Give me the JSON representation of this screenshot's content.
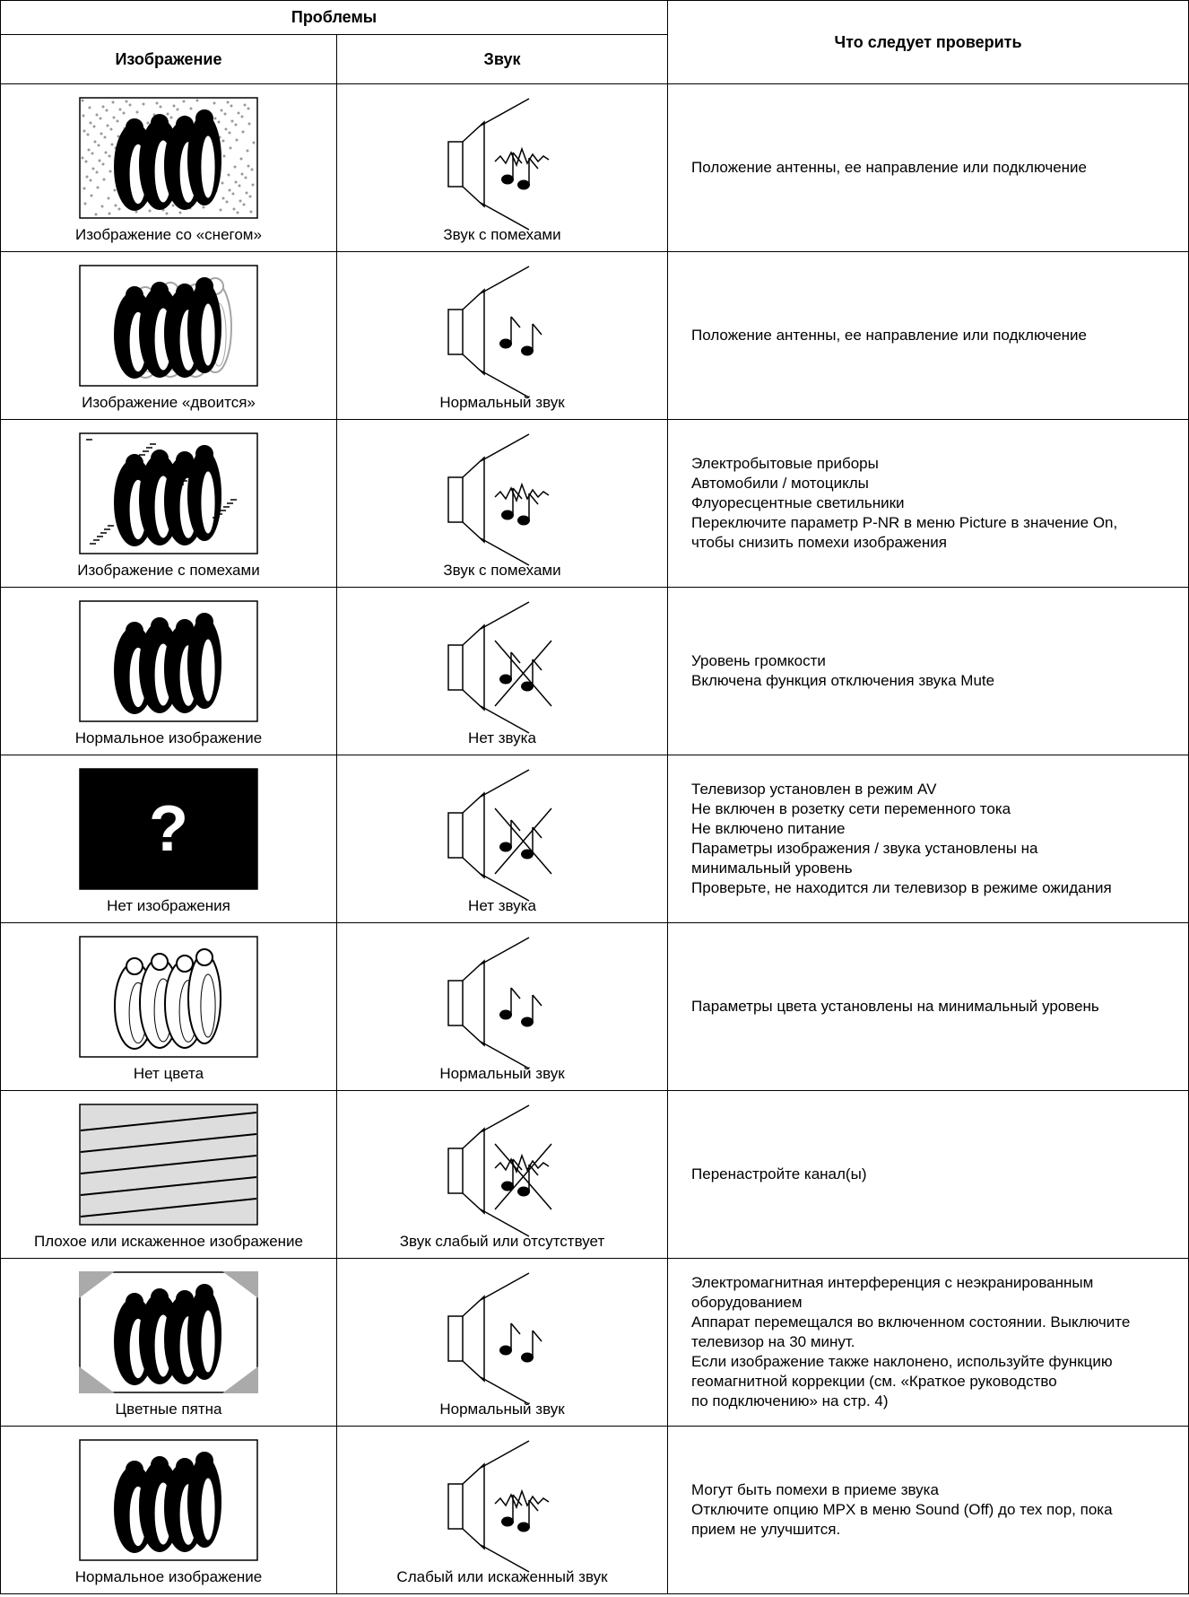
{
  "header": {
    "problems": "Проблемы",
    "image": "Изображение",
    "sound": "Звук",
    "check": "Что следует проверить"
  },
  "rows": [
    {
      "image_caption": "Изображение со «снегом»",
      "sound_caption": "Звук с помехами",
      "check": [
        "Положение антенны, ее направление или подключение"
      ]
    },
    {
      "image_caption": "Изображение «двоится»",
      "sound_caption": "Нормальный звук",
      "check": [
        "Положение антенны, ее направление или подключение"
      ]
    },
    {
      "image_caption": "Изображение с помехами",
      "sound_caption": "Звук с помехами",
      "check": [
        "Электробытовые приборы",
        "Автомобили / мотоциклы",
        "Флуоресцентные светильники",
        "Переключите параметр P-NR в меню Picture в значение On,",
        "чтобы снизить помехи изображения"
      ]
    },
    {
      "image_caption": "Нормальное изображение",
      "sound_caption": "Нет звука",
      "check": [
        "Уровень громкости",
        "Включена функция отключения звука Mute"
      ]
    },
    {
      "image_caption": "Нет изображения",
      "picture_symbol": "?",
      "sound_caption": "Нет звука",
      "check": [
        "Телевизор установлен в режим AV",
        "Не включен в розетку сети переменного тока",
        "Не включено питание",
        "Параметры изображения / звука установлены на",
        "минимальный уровень",
        "Проверьте, не находится ли телевизор в режиме ожидания"
      ]
    },
    {
      "image_caption": "Нет цвета",
      "sound_caption": "Нормальный звук",
      "check": [
        "Параметры цвета установлены на минимальный уровень"
      ]
    },
    {
      "image_caption": "Плохое или искаженное изображение",
      "sound_caption": "Звук слабый или отсутствует",
      "check": [
        "Перенастройте канал(ы)"
      ]
    },
    {
      "image_caption": "Цветные пятна",
      "sound_caption": "Нормальный звук",
      "check": [
        "Электромагнитная интерференция с неэкранированным",
        "оборудованием",
        "Аппарат перемещался во включенном состоянии. Выключите",
        "телевизор на 30 минут.",
        "Если изображение также наклонено, используйте функцию",
        "геомагнитной коррекции (см. «Краткое руководство",
        "по подключению» на стр. 4)"
      ]
    },
    {
      "image_caption": "Нормальное изображение",
      "sound_caption": "Слабый или искаженный звук",
      "check": [
        "Могут быть помехи в приеме звука",
        "Отключите опцию MPX в меню Sound (Off) до тех пор, пока",
        "прием не улучшится."
      ]
    }
  ]
}
